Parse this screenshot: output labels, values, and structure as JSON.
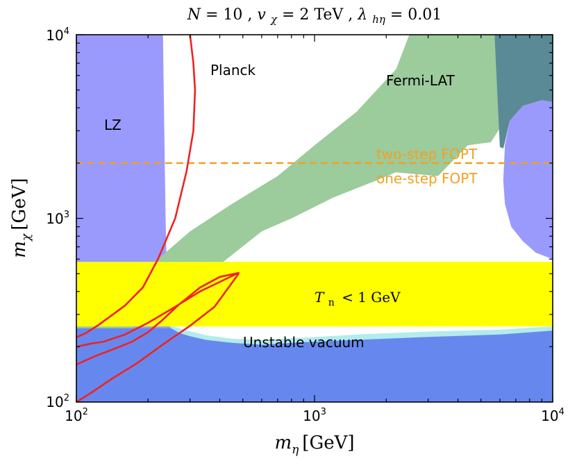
{
  "chart_data": {
    "type": "area",
    "title": "N = 10,  v_χ = 2 TeV,  λ_hη = 0.01",
    "title_parts": {
      "n": "N",
      "n_val": "10",
      "v": "v",
      "v_sub": "χ",
      "v_val": "2 TeV",
      "lam": "λ",
      "lam_sub": "hη",
      "lam_val": "0.01"
    },
    "xlabel": "m_η [GeV]",
    "ylabel": "m_χ [GeV]",
    "xlabel_parts": {
      "sym": "m",
      "sub": "η",
      "unit": "[GeV]"
    },
    "ylabel_parts": {
      "sym": "m",
      "sub": "χ",
      "unit": "[GeV]"
    },
    "x_scale": "log",
    "y_scale": "log",
    "xlim": [
      100,
      10000
    ],
    "ylim": [
      100,
      10000
    ],
    "x_ticks": [
      {
        "base": "10",
        "exp": "2"
      },
      {
        "base": "10",
        "exp": "3"
      },
      {
        "base": "10",
        "exp": "4"
      }
    ],
    "y_ticks": [
      {
        "base": "10",
        "exp": "2"
      },
      {
        "base": "10",
        "exp": "3"
      },
      {
        "base": "10",
        "exp": "4"
      }
    ],
    "regions": [
      {
        "name": "Unstable vacuum",
        "color": "#b2ecec",
        "points": [
          [
            100,
            100
          ],
          [
            10000,
            100
          ],
          [
            10000,
            258
          ],
          [
            6000,
            248
          ],
          [
            3000,
            242
          ],
          [
            1500,
            233
          ],
          [
            900,
            224
          ],
          [
            600,
            218
          ],
          [
            450,
            221
          ],
          [
            350,
            231
          ],
          [
            300,
            243
          ],
          [
            270,
            252
          ],
          [
            250,
            260
          ],
          [
            100,
            260
          ]
        ]
      },
      {
        "name": "LZ",
        "color": "#9a9afd",
        "points": [
          [
            100,
            100
          ],
          [
            255,
            100
          ],
          [
            250,
            225
          ],
          [
            245,
            300
          ],
          [
            240,
            450
          ],
          [
            237,
            1000
          ],
          [
            234,
            3000
          ],
          [
            231,
            10000
          ],
          [
            100,
            10000
          ]
        ]
      },
      {
        "name": "LZ",
        "color": "#9a9afd",
        "points": [
          [
            10000,
            4300
          ],
          [
            9000,
            4400
          ],
          [
            7500,
            4100
          ],
          [
            6600,
            3400
          ],
          [
            6300,
            2500
          ],
          [
            6200,
            1600
          ],
          [
            6300,
            1200
          ],
          [
            6700,
            900
          ],
          [
            7500,
            750
          ],
          [
            8500,
            650
          ],
          [
            10000,
            600
          ]
        ]
      },
      {
        "name": "Fermi-LAT",
        "color": "#9ccb9c",
        "points": [
          [
            100,
            270
          ],
          [
            120,
            300
          ],
          [
            160,
            420
          ],
          [
            220,
            600
          ],
          [
            300,
            850
          ],
          [
            450,
            1200
          ],
          [
            700,
            1700
          ],
          [
            1000,
            2500
          ],
          [
            1500,
            3800
          ],
          [
            2200,
            6500
          ],
          [
            2500,
            10000
          ],
          [
            7000,
            10000
          ],
          [
            6200,
            3300
          ],
          [
            5500,
            2600
          ],
          [
            4400,
            2500
          ],
          [
            3300,
            1700
          ],
          [
            2000,
            1800
          ],
          [
            3500,
            2300
          ],
          [
            1800,
            1600
          ],
          [
            1200,
            1300
          ],
          [
            800,
            1000
          ],
          [
            600,
            850
          ],
          [
            400,
            560
          ],
          [
            250,
            330
          ],
          [
            150,
            230
          ],
          [
            100,
            220
          ]
        ]
      },
      {
        "name": "Fermi-LAT",
        "color": "#5a8a96",
        "points": [
          [
            5700,
            10000
          ],
          [
            10000,
            10000
          ],
          [
            10000,
            4300
          ],
          [
            9000,
            4400
          ],
          [
            7500,
            4100
          ],
          [
            6600,
            3400
          ],
          [
            6300,
            2600
          ],
          [
            6200,
            2400
          ],
          [
            6000,
            2450
          ],
          [
            5700,
            10000
          ]
        ]
      },
      {
        "name": "",
        "color": "#3f7f8e",
        "points": [
          [
            118,
            100
          ],
          [
            118,
            160
          ],
          [
            140,
            180
          ],
          [
            180,
            195
          ],
          [
            220,
            205
          ],
          [
            240,
            195
          ],
          [
            245,
            100
          ]
        ]
      },
      {
        "name": "T_n < 1 GeV",
        "color": "#ffff00",
        "points": [
          [
            100,
            258
          ],
          [
            10000,
            258
          ],
          [
            10000,
            580
          ],
          [
            100,
            580
          ]
        ]
      },
      {
        "name": "Unstable vacuum",
        "color": "#6688ee",
        "points": [
          [
            100,
            100
          ],
          [
            10000,
            100
          ],
          [
            10000,
            245
          ],
          [
            6000,
            233
          ],
          [
            3000,
            226
          ],
          [
            1500,
            218
          ],
          [
            900,
            212
          ],
          [
            600,
            205
          ],
          [
            450,
            210
          ],
          [
            350,
            218
          ],
          [
            300,
            228
          ],
          [
            270,
            238
          ],
          [
            250,
            252
          ],
          [
            100,
            252
          ]
        ]
      }
    ],
    "curves": [
      {
        "name": "Planck",
        "color": "#ee2222",
        "points": [
          [
            100,
            225
          ],
          [
            110,
            238
          ],
          [
            125,
            265
          ],
          [
            140,
            295
          ],
          [
            160,
            335
          ],
          [
            190,
            420
          ],
          [
            220,
            600
          ],
          [
            260,
            1000
          ],
          [
            290,
            1800
          ],
          [
            310,
            3000
          ],
          [
            315,
            5000
          ],
          [
            310,
            7000
          ],
          [
            300,
            10000
          ]
        ]
      },
      {
        "name": "Planck",
        "color": "#ee2222",
        "points": [
          [
            100,
            160
          ],
          [
            120,
            178
          ],
          [
            140,
            192
          ],
          [
            170,
            212
          ],
          [
            200,
            240
          ],
          [
            230,
            280
          ],
          [
            270,
            340
          ],
          [
            330,
            420
          ],
          [
            400,
            480
          ],
          [
            480,
            505
          ],
          [
            420,
            465
          ],
          [
            330,
            400
          ],
          [
            250,
            320
          ],
          [
            200,
            270
          ],
          [
            160,
            233
          ],
          [
            130,
            213
          ],
          [
            115,
            208
          ],
          [
            100,
            200
          ]
        ]
      },
      {
        "name": "Planck",
        "color": "#ee2222",
        "points": [
          [
            100,
            100
          ],
          [
            115,
            112
          ],
          [
            140,
            133
          ],
          [
            180,
            163
          ],
          [
            230,
            205
          ],
          [
            300,
            260
          ],
          [
            380,
            330
          ],
          [
            480,
            500
          ]
        ]
      }
    ],
    "lines": [
      {
        "name": "FOPT boundary",
        "y": 2000,
        "color": "#f2a022",
        "style": "dashed"
      }
    ],
    "annotations": {
      "planck": "Planck",
      "fermi": "Fermi-LAT",
      "lz": "LZ",
      "two_step": "two-step FOPT",
      "one_step": "one-step FOPT",
      "tn": "T_n < 1 GeV",
      "tn_parts": {
        "sym": "T",
        "sub": "n",
        "rest": "< 1 GeV"
      },
      "unstable": "Unstable vacuum"
    },
    "colors": {
      "lz": "#9a9afd",
      "fermi": "#9ccb9c",
      "tn": "#ffff00",
      "unstable_light": "#b2ecec",
      "unstable_dark": "#6688ee",
      "planck": "#ee2222",
      "fopt": "#f2a022"
    }
  }
}
